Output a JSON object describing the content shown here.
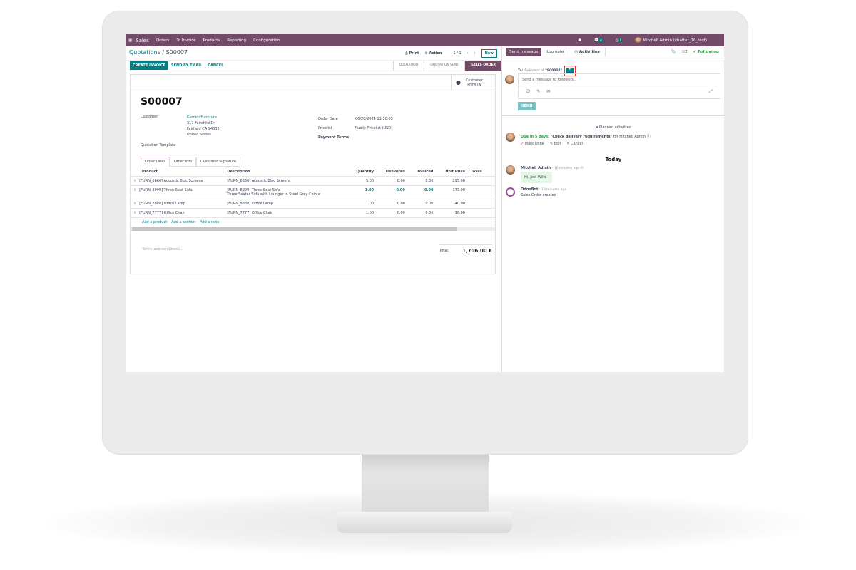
{
  "nav": {
    "app": "Sales",
    "menu": [
      "Orders",
      "To Invoice",
      "Products",
      "Reporting",
      "Configuration"
    ],
    "messages_count": "4",
    "activities_count": "2",
    "user": "Mitchell Admin (chatter_16_test)"
  },
  "control": {
    "breadcrumb_parent": "Quotations",
    "breadcrumb_sep": " / ",
    "record": "S00007",
    "print": "Print",
    "action": "Action",
    "pager": "1 / 1",
    "new": "New"
  },
  "statusbar": {
    "create_invoice": "CREATE INVOICE",
    "send_email": "SEND BY EMAIL",
    "cancel": "CANCEL",
    "stages": [
      "QUOTATION",
      "QUOTATION SENT",
      "SALES ORDER"
    ],
    "active_stage": "SALES ORDER"
  },
  "form": {
    "customer_preview": "Customer Preview",
    "title": "S00007",
    "customer_label": "Customer",
    "customer": "Gemini Furniture",
    "address": [
      "317 Fairchild Dr",
      "Fairfield CA 94535",
      "United States"
    ],
    "template_label": "Quotation Template",
    "order_date_label": "Order Date",
    "order_date": "06/20/2024 11:10:03",
    "pricelist_label": "Pricelist",
    "pricelist": "Public Pricelist (USD)",
    "payment_terms_label": "Payment Terms",
    "tabs": [
      "Order Lines",
      "Other Info",
      "Customer Signature"
    ],
    "columns": [
      "Product",
      "Description",
      "Quantity",
      "Delivered",
      "Invoiced",
      "Unit Price",
      "Taxes"
    ],
    "lines": [
      {
        "product": "[FURN_6666] Acoustic Bloc Screens",
        "description": "[FURN_6666] Acoustic Bloc Screens",
        "description2": "",
        "qty": "5.00",
        "delivered": "0.00",
        "invoiced": "0.00",
        "price": "295.00"
      },
      {
        "product": "[FURN_8999] Three-Seat Sofa",
        "description": "[FURN_8999] Three-Seat Sofa",
        "description2": "Three Seater Sofa with Lounger in Steel Grey Colour",
        "qty": "1.00",
        "delivered": "0.00",
        "invoiced": "0.00",
        "price": "173.00"
      },
      {
        "product": "[FURN_8888] Office Lamp",
        "description": "[FURN_8888] Office Lamp",
        "description2": "",
        "qty": "1.00",
        "delivered": "0.00",
        "invoiced": "0.00",
        "price": "40.00"
      },
      {
        "product": "[FURN_7777] Office Chair",
        "description": "[FURN_7777] Office Chair",
        "description2": "",
        "qty": "1.00",
        "delivered": "0.00",
        "invoiced": "0.00",
        "price": "18.00"
      }
    ],
    "add_product": "Add a product",
    "add_section": "Add a section",
    "add_note": "Add a note",
    "terms_placeholder": "Terms and conditions...",
    "total_label": "Total:",
    "total": "1,706.00 €"
  },
  "chatter": {
    "send_message": "Send message",
    "log_note": "Log note",
    "activities": "Activities",
    "followers_count": "2",
    "following": "Following",
    "to_label": "To:",
    "to_followers": "Followers of",
    "to_record": "\"S00007\"",
    "composer_placeholder": "Send a message to followers...",
    "send": "SEND",
    "planned_label": "Planned activities",
    "due": "Due in 5 days:",
    "activity": "\"Check delivery requirements\"",
    "for_user": "for Mitchell Admin",
    "mark_done": "Mark Done",
    "edit": "Edit",
    "cancel": "Cancel",
    "today": "Today",
    "messages": [
      {
        "author": "Mitchell Admin",
        "time": "- 16 minutes ago",
        "body": "Hi, Joel Wills"
      },
      {
        "author": "OdooBot",
        "time": "- 18 minutes ago",
        "body": "Sales Order created"
      }
    ]
  },
  "colors": {
    "brand": "#714b67",
    "accent": "#017e84",
    "success": "#28a745",
    "highlight": "#e53935"
  }
}
